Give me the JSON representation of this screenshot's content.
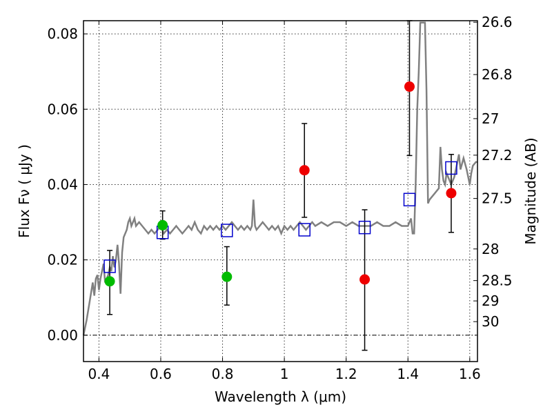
{
  "chart_data": {
    "type": "scatter",
    "xlabel": "Wavelength  λ (μm)",
    "ylabel": "Flux  Fν  ( μJy )",
    "ylabel_right": "Magnitude (AB)",
    "xlim": [
      0.35,
      1.625
    ],
    "ylim": [
      -0.007,
      0.0835
    ],
    "grid": true,
    "x_ticks": [
      0.4,
      0.6,
      0.8,
      1.0,
      1.2,
      1.4,
      1.6
    ],
    "x_tick_labels": [
      "0.4",
      "0.6",
      "0.8",
      "1",
      "1.2",
      "1.4",
      "1.6"
    ],
    "y_ticks": [
      0.0,
      0.02,
      0.04,
      0.06,
      0.08
    ],
    "y_tick_labels": [
      "0.00",
      "0.02",
      "0.04",
      "0.06",
      "0.08"
    ],
    "right_ticks": [
      {
        "label": "26.6",
        "flux": 0.0831
      },
      {
        "label": "26.8",
        "flux": 0.0692
      },
      {
        "label": "27",
        "flux": 0.0575
      },
      {
        "label": "27.2",
        "flux": 0.0478
      },
      {
        "label": "27.5",
        "flux": 0.0363
      },
      {
        "label": "28",
        "flux": 0.0229
      },
      {
        "label": "28.5",
        "flux": 0.0145
      },
      {
        "label": "29",
        "flux": 0.0091
      },
      {
        "label": "30",
        "flux": 0.0036
      }
    ],
    "model_sed": {
      "name": "",
      "color": "#808080",
      "points": [
        [
          0.35,
          0.0
        ],
        [
          0.36,
          0.004
        ],
        [
          0.37,
          0.009
        ],
        [
          0.38,
          0.014
        ],
        [
          0.385,
          0.0105
        ],
        [
          0.39,
          0.015
        ],
        [
          0.395,
          0.016
        ],
        [
          0.4,
          0.012
        ],
        [
          0.405,
          0.015
        ],
        [
          0.41,
          0.017
        ],
        [
          0.415,
          0.019
        ],
        [
          0.42,
          0.014
        ],
        [
          0.425,
          0.015
        ],
        [
          0.43,
          0.016
        ],
        [
          0.435,
          0.018
        ],
        [
          0.44,
          0.017
        ],
        [
          0.445,
          0.021
        ],
        [
          0.45,
          0.018
        ],
        [
          0.455,
          0.02
        ],
        [
          0.46,
          0.024
        ],
        [
          0.465,
          0.019
        ],
        [
          0.47,
          0.011
        ],
        [
          0.475,
          0.022
        ],
        [
          0.48,
          0.026
        ],
        [
          0.485,
          0.027
        ],
        [
          0.49,
          0.028
        ],
        [
          0.495,
          0.03
        ],
        [
          0.5,
          0.031
        ],
        [
          0.505,
          0.029
        ],
        [
          0.51,
          0.03
        ],
        [
          0.515,
          0.031
        ],
        [
          0.52,
          0.029
        ],
        [
          0.53,
          0.03
        ],
        [
          0.54,
          0.029
        ],
        [
          0.55,
          0.028
        ],
        [
          0.56,
          0.027
        ],
        [
          0.57,
          0.028
        ],
        [
          0.58,
          0.027
        ],
        [
          0.59,
          0.028
        ],
        [
          0.6,
          0.029
        ],
        [
          0.61,
          0.027
        ],
        [
          0.62,
          0.028
        ],
        [
          0.63,
          0.027
        ],
        [
          0.64,
          0.028
        ],
        [
          0.65,
          0.029
        ],
        [
          0.66,
          0.028
        ],
        [
          0.67,
          0.027
        ],
        [
          0.68,
          0.028
        ],
        [
          0.69,
          0.029
        ],
        [
          0.7,
          0.028
        ],
        [
          0.71,
          0.03
        ],
        [
          0.72,
          0.028
        ],
        [
          0.73,
          0.027
        ],
        [
          0.74,
          0.029
        ],
        [
          0.75,
          0.028
        ],
        [
          0.76,
          0.029
        ],
        [
          0.77,
          0.028
        ],
        [
          0.78,
          0.029
        ],
        [
          0.79,
          0.028
        ],
        [
          0.8,
          0.029
        ],
        [
          0.81,
          0.028
        ],
        [
          0.82,
          0.029
        ],
        [
          0.83,
          0.03
        ],
        [
          0.84,
          0.029
        ],
        [
          0.85,
          0.028
        ],
        [
          0.86,
          0.029
        ],
        [
          0.87,
          0.028
        ],
        [
          0.88,
          0.029
        ],
        [
          0.89,
          0.028
        ],
        [
          0.895,
          0.029
        ],
        [
          0.9,
          0.036
        ],
        [
          0.905,
          0.029
        ],
        [
          0.91,
          0.028
        ],
        [
          0.92,
          0.029
        ],
        [
          0.93,
          0.03
        ],
        [
          0.94,
          0.029
        ],
        [
          0.95,
          0.028
        ],
        [
          0.96,
          0.029
        ],
        [
          0.97,
          0.028
        ],
        [
          0.98,
          0.029
        ],
        [
          0.99,
          0.027
        ],
        [
          1.0,
          0.029
        ],
        [
          1.01,
          0.028
        ],
        [
          1.02,
          0.029
        ],
        [
          1.03,
          0.028
        ],
        [
          1.04,
          0.029
        ],
        [
          1.05,
          0.03
        ],
        [
          1.06,
          0.029
        ],
        [
          1.07,
          0.028
        ],
        [
          1.08,
          0.029
        ],
        [
          1.09,
          0.03
        ],
        [
          1.1,
          0.029
        ],
        [
          1.12,
          0.03
        ],
        [
          1.14,
          0.029
        ],
        [
          1.16,
          0.03
        ],
        [
          1.18,
          0.03
        ],
        [
          1.2,
          0.029
        ],
        [
          1.22,
          0.03
        ],
        [
          1.24,
          0.029
        ],
        [
          1.26,
          0.029
        ],
        [
          1.28,
          0.029
        ],
        [
          1.3,
          0.03
        ],
        [
          1.32,
          0.029
        ],
        [
          1.34,
          0.029
        ],
        [
          1.36,
          0.03
        ],
        [
          1.38,
          0.029
        ],
        [
          1.39,
          0.029
        ],
        [
          1.4,
          0.029
        ],
        [
          1.41,
          0.031
        ],
        [
          1.415,
          0.027
        ],
        [
          1.42,
          0.027
        ],
        [
          1.425,
          0.04
        ],
        [
          1.43,
          0.06
        ],
        [
          1.435,
          0.07
        ],
        [
          1.44,
          0.083
        ],
        [
          1.45,
          0.083
        ],
        [
          1.455,
          0.083
        ],
        [
          1.46,
          0.065
        ],
        [
          1.465,
          0.035
        ],
        [
          1.47,
          0.036
        ],
        [
          1.48,
          0.037
        ],
        [
          1.49,
          0.038
        ],
        [
          1.5,
          0.039
        ],
        [
          1.505,
          0.05
        ],
        [
          1.51,
          0.044
        ],
        [
          1.515,
          0.041
        ],
        [
          1.52,
          0.04
        ],
        [
          1.525,
          0.043
        ],
        [
          1.53,
          0.042
        ],
        [
          1.54,
          0.04
        ],
        [
          1.55,
          0.042
        ],
        [
          1.56,
          0.046
        ],
        [
          1.565,
          0.048
        ],
        [
          1.57,
          0.044
        ],
        [
          1.58,
          0.047
        ],
        [
          1.59,
          0.044
        ],
        [
          1.6,
          0.04
        ],
        [
          1.605,
          0.043
        ],
        [
          1.61,
          0.045
        ],
        [
          1.62,
          0.046
        ],
        [
          1.625,
          0.046
        ]
      ]
    },
    "model_photometry": {
      "name": "",
      "color": "#0000cc",
      "x": [
        0.435,
        0.606,
        0.814,
        1.065,
        1.26,
        1.405,
        1.54
      ],
      "y": [
        0.0183,
        0.0273,
        0.0278,
        0.028,
        0.0286,
        0.036,
        0.0444
      ]
    },
    "detections": {
      "name": "",
      "color": "#00bb00",
      "x": [
        0.435,
        0.606,
        0.814
      ],
      "y": [
        0.0143,
        0.0292,
        0.0155
      ],
      "yerr_low": [
        0.0055,
        0.0255,
        0.008
      ],
      "yerr_high": [
        0.0225,
        0.033,
        0.0235
      ]
    },
    "measurements": {
      "name": "",
      "color": "#ee0000",
      "x": [
        1.065,
        1.26,
        1.405,
        1.54
      ],
      "y": [
        0.0438,
        0.0148,
        0.066,
        0.0377
      ],
      "yerr_low": [
        0.0313,
        -0.004,
        0.0477,
        0.0273
      ],
      "yerr_high": [
        0.0562,
        0.0333,
        0.0835,
        0.048
      ]
    }
  }
}
